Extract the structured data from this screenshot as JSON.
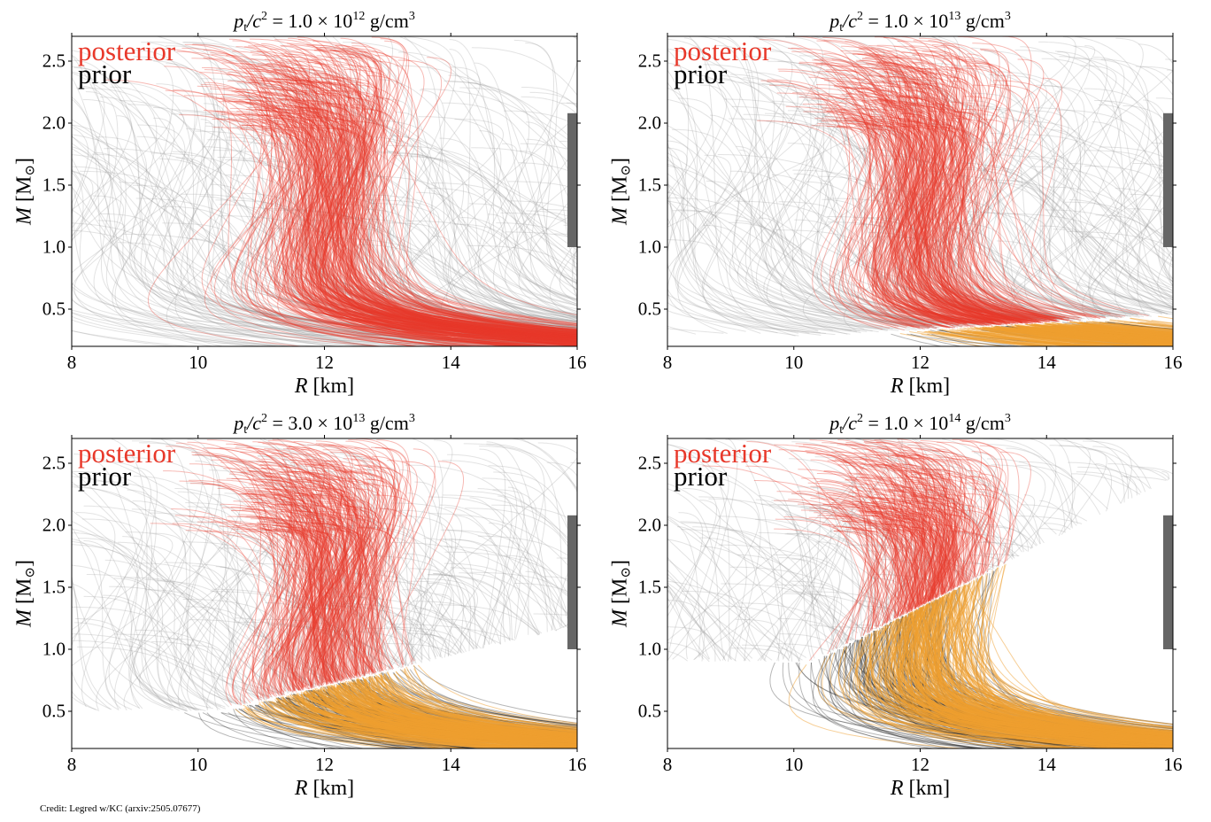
{
  "credit": "Credit: Legred w/KC (arxiv:2505.07677)",
  "colors": {
    "posterior": "#e8382a",
    "posterior_low": "#f0a030",
    "prior": "#9a9a9a",
    "prior_low": "#111111",
    "band": "#666666"
  },
  "chart_data": [
    {
      "type": "line",
      "title": {
        "lhs_var": "p",
        "lhs_sub": "t",
        "lhs_den": "/c",
        "lhs_pow": "2",
        "eq": " = ",
        "coefficient": "1.0",
        "times": " × 10",
        "exponent": "12",
        "unit": " g/cm",
        "unit_pow": "3"
      },
      "legend": [
        "posterior",
        "prior"
      ],
      "xlabel": {
        "var": "R",
        "unit": " [km]"
      },
      "ylabel": {
        "var": "M",
        "unit": " [M",
        "unit_sub": "⊙",
        "close": "]"
      },
      "xlim": [
        8,
        16
      ],
      "ylim": [
        0.2,
        2.7
      ],
      "xticks": [
        "8",
        "10",
        "12",
        "14",
        "16"
      ],
      "yticks": [
        "0.5",
        "1.0",
        "1.5",
        "2.0",
        "2.5"
      ],
      "mass_band": [
        1.0,
        2.08
      ],
      "posterior_R_at_1p4": [
        11.0,
        13.3
      ]
    },
    {
      "type": "line",
      "title": {
        "lhs_var": "p",
        "lhs_sub": "t",
        "lhs_den": "/c",
        "lhs_pow": "2",
        "eq": " = ",
        "coefficient": "1.0",
        "times": " × 10",
        "exponent": "13",
        "unit": " g/cm",
        "unit_pow": "3"
      },
      "legend": [
        "posterior",
        "prior"
      ],
      "xlabel": {
        "var": "R",
        "unit": " [km]"
      },
      "ylabel": {
        "var": "M",
        "unit": " [M",
        "unit_sub": "⊙",
        "close": "]"
      },
      "xlim": [
        8,
        16
      ],
      "ylim": [
        0.2,
        2.7
      ],
      "xticks": [
        "8",
        "10",
        "12",
        "14",
        "16"
      ],
      "yticks": [
        "0.5",
        "1.0",
        "1.5",
        "2.0",
        "2.5"
      ],
      "mass_band": [
        1.0,
        2.08
      ],
      "posterior_R_at_1p4": [
        11.0,
        13.0
      ]
    },
    {
      "type": "line",
      "title": {
        "lhs_var": "p",
        "lhs_sub": "t",
        "lhs_den": "/c",
        "lhs_pow": "2",
        "eq": " = ",
        "coefficient": "3.0",
        "times": " × 10",
        "exponent": "13",
        "unit": " g/cm",
        "unit_pow": "3"
      },
      "legend": [
        "posterior",
        "prior"
      ],
      "xlabel": {
        "var": "R",
        "unit": " [km]"
      },
      "ylabel": {
        "var": "M",
        "unit": " [M",
        "unit_sub": "⊙",
        "close": "]"
      },
      "xlim": [
        8,
        16
      ],
      "ylim": [
        0.2,
        2.7
      ],
      "xticks": [
        "8",
        "10",
        "12",
        "14",
        "16"
      ],
      "yticks": [
        "0.5",
        "1.0",
        "1.5",
        "2.0",
        "2.5"
      ],
      "mass_band": [
        1.0,
        2.08
      ],
      "posterior_R_at_1p4": [
        11.0,
        12.9
      ]
    },
    {
      "type": "line",
      "title": {
        "lhs_var": "p",
        "lhs_sub": "t",
        "lhs_den": "/c",
        "lhs_pow": "2",
        "eq": " = ",
        "coefficient": "1.0",
        "times": " × 10",
        "exponent": "14",
        "unit": " g/cm",
        "unit_pow": "3"
      },
      "legend": [
        "posterior",
        "prior"
      ],
      "xlabel": {
        "var": "R",
        "unit": " [km]"
      },
      "ylabel": {
        "var": "M",
        "unit": " [M",
        "unit_sub": "⊙",
        "close": "]"
      },
      "xlim": [
        8,
        16
      ],
      "ylim": [
        0.2,
        2.7
      ],
      "xticks": [
        "8",
        "10",
        "12",
        "14",
        "16"
      ],
      "yticks": [
        "0.5",
        "1.0",
        "1.5",
        "2.0",
        "2.5"
      ],
      "mass_band": [
        1.0,
        2.08
      ],
      "posterior_R_at_1p4": [
        11.2,
        13.1
      ]
    }
  ]
}
